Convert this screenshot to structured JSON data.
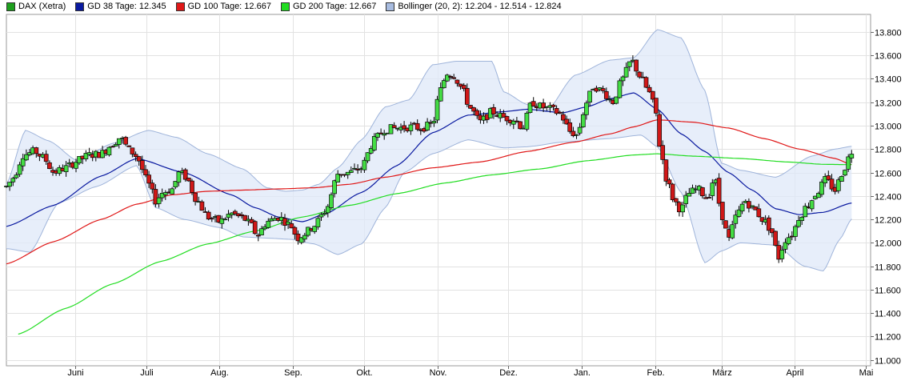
{
  "legend": [
    {
      "label": "DAX (Xetra)",
      "color": "#1ea01e"
    },
    {
      "label": "GD 38 Tage: 12.345",
      "color": "#0a1aa0"
    },
    {
      "label": "GD 100 Tage: 12.667",
      "color": "#e01818"
    },
    {
      "label": "GD 200 Tage: 12.667",
      "color": "#22dd22"
    },
    {
      "label": "Bollinger (20, 2): 12.204 - 12.514 - 12.824",
      "color": "#a8bce0"
    }
  ],
  "chart_data": {
    "type": "candlestick",
    "ylim": [
      10950,
      13950
    ],
    "y_ticks": [
      11000,
      11200,
      11400,
      11600,
      11800,
      12000,
      12200,
      12400,
      12600,
      12800,
      13000,
      13200,
      13400,
      13600,
      13800
    ],
    "y_tick_labels": [
      "11.000",
      "11.200",
      "11.400",
      "11.600",
      "11.800",
      "12.000",
      "12.200",
      "12.400",
      "12.600",
      "12.800",
      "13.000",
      "13.200",
      "13.400",
      "13.600",
      "13.800"
    ],
    "x_range_days": [
      0,
      342
    ],
    "x_months": [
      {
        "label": "Juni",
        "day": 29
      },
      {
        "label": "Juli",
        "day": 59
      },
      {
        "label": "Aug.",
        "day": 90
      },
      {
        "label": "Sep.",
        "day": 121
      },
      {
        "label": "Okt.",
        "day": 151
      },
      {
        "label": "Nov.",
        "day": 182
      },
      {
        "label": "Dez.",
        "day": 212
      },
      {
        "label": "Jan.",
        "day": 243
      },
      {
        "label": "Feb.",
        "day": 274
      },
      {
        "label": "März",
        "day": 302
      },
      {
        "label": "April",
        "day": 333
      },
      {
        "label": "Mai",
        "day": 363
      }
    ],
    "series": [
      {
        "name": "GD 38 Tage",
        "color": "#0a1aa0",
        "points": [
          [
            0,
            12140
          ],
          [
            20,
            12320
          ],
          [
            40,
            12570
          ],
          [
            55,
            12720
          ],
          [
            75,
            12600
          ],
          [
            95,
            12410
          ],
          [
            105,
            12300
          ],
          [
            115,
            12220
          ],
          [
            125,
            12180
          ],
          [
            135,
            12250
          ],
          [
            150,
            12430
          ],
          [
            165,
            12660
          ],
          [
            180,
            12940
          ],
          [
            195,
            13090
          ],
          [
            210,
            13120
          ],
          [
            220,
            13140
          ],
          [
            235,
            13110
          ],
          [
            245,
            13160
          ],
          [
            255,
            13230
          ],
          [
            265,
            13280
          ],
          [
            275,
            13140
          ],
          [
            285,
            12930
          ],
          [
            295,
            12780
          ],
          [
            305,
            12600
          ],
          [
            315,
            12450
          ],
          [
            325,
            12290
          ],
          [
            335,
            12240
          ],
          [
            345,
            12260
          ],
          [
            357,
            12340
          ]
        ]
      },
      {
        "name": "GD 100 Tage",
        "color": "#e01818",
        "points": [
          [
            0,
            11820
          ],
          [
            20,
            12010
          ],
          [
            40,
            12200
          ],
          [
            55,
            12330
          ],
          [
            70,
            12410
          ],
          [
            85,
            12440
          ],
          [
            100,
            12450
          ],
          [
            115,
            12460
          ],
          [
            130,
            12470
          ],
          [
            145,
            12500
          ],
          [
            160,
            12560
          ],
          [
            180,
            12640
          ],
          [
            200,
            12690
          ],
          [
            220,
            12780
          ],
          [
            240,
            12860
          ],
          [
            255,
            12930
          ],
          [
            265,
            12990
          ],
          [
            275,
            13050
          ],
          [
            290,
            13030
          ],
          [
            305,
            12980
          ],
          [
            320,
            12890
          ],
          [
            335,
            12800
          ],
          [
            350,
            12720
          ],
          [
            357,
            12667
          ]
        ]
      },
      {
        "name": "GD 200 Tage",
        "color": "#22dd22",
        "points": [
          [
            5,
            11220
          ],
          [
            25,
            11440
          ],
          [
            45,
            11650
          ],
          [
            65,
            11840
          ],
          [
            85,
            11990
          ],
          [
            105,
            12100
          ],
          [
            125,
            12220
          ],
          [
            145,
            12320
          ],
          [
            165,
            12420
          ],
          [
            185,
            12510
          ],
          [
            205,
            12580
          ],
          [
            225,
            12630
          ],
          [
            245,
            12700
          ],
          [
            265,
            12750
          ],
          [
            275,
            12760
          ],
          [
            290,
            12740
          ],
          [
            310,
            12720
          ],
          [
            330,
            12690
          ],
          [
            345,
            12670
          ],
          [
            357,
            12667
          ]
        ]
      }
    ],
    "bollinger": {
      "name": "Bollinger (20, 2)",
      "upper": [
        [
          0,
          12500
        ],
        [
          8,
          12960
        ],
        [
          18,
          12870
        ],
        [
          30,
          12700
        ],
        [
          45,
          12850
        ],
        [
          60,
          12960
        ],
        [
          72,
          12900
        ],
        [
          85,
          12760
        ],
        [
          100,
          12630
        ],
        [
          110,
          12470
        ],
        [
          118,
          12440
        ],
        [
          125,
          12450
        ],
        [
          132,
          12500
        ],
        [
          140,
          12640
        ],
        [
          150,
          12880
        ],
        [
          160,
          13160
        ],
        [
          170,
          13220
        ],
        [
          180,
          13520
        ],
        [
          190,
          13550
        ],
        [
          205,
          13550
        ],
        [
          210,
          13290
        ],
        [
          220,
          13180
        ],
        [
          228,
          13120
        ],
        [
          240,
          13430
        ],
        [
          255,
          13560
        ],
        [
          265,
          13580
        ],
        [
          275,
          13820
        ],
        [
          285,
          13750
        ],
        [
          295,
          13300
        ],
        [
          302,
          12680
        ],
        [
          310,
          12620
        ],
        [
          325,
          12560
        ],
        [
          340,
          12740
        ],
        [
          350,
          12800
        ],
        [
          357,
          12824
        ]
      ],
      "lower": [
        [
          0,
          11950
        ],
        [
          10,
          11920
        ],
        [
          22,
          12340
        ],
        [
          38,
          12480
        ],
        [
          55,
          12660
        ],
        [
          63,
          12300
        ],
        [
          75,
          12200
        ],
        [
          90,
          12130
        ],
        [
          100,
          12050
        ],
        [
          110,
          12040
        ],
        [
          120,
          12030
        ],
        [
          130,
          11990
        ],
        [
          140,
          11900
        ],
        [
          150,
          11990
        ],
        [
          160,
          12300
        ],
        [
          168,
          12600
        ],
        [
          180,
          12760
        ],
        [
          195,
          12880
        ],
        [
          210,
          12810
        ],
        [
          220,
          12820
        ],
        [
          235,
          12860
        ],
        [
          255,
          12890
        ],
        [
          268,
          12920
        ],
        [
          275,
          12820
        ],
        [
          285,
          12430
        ],
        [
          295,
          11830
        ],
        [
          302,
          11930
        ],
        [
          310,
          12000
        ],
        [
          325,
          11980
        ],
        [
          337,
          11800
        ],
        [
          345,
          11760
        ],
        [
          352,
          12030
        ],
        [
          357,
          12204
        ]
      ]
    }
  }
}
